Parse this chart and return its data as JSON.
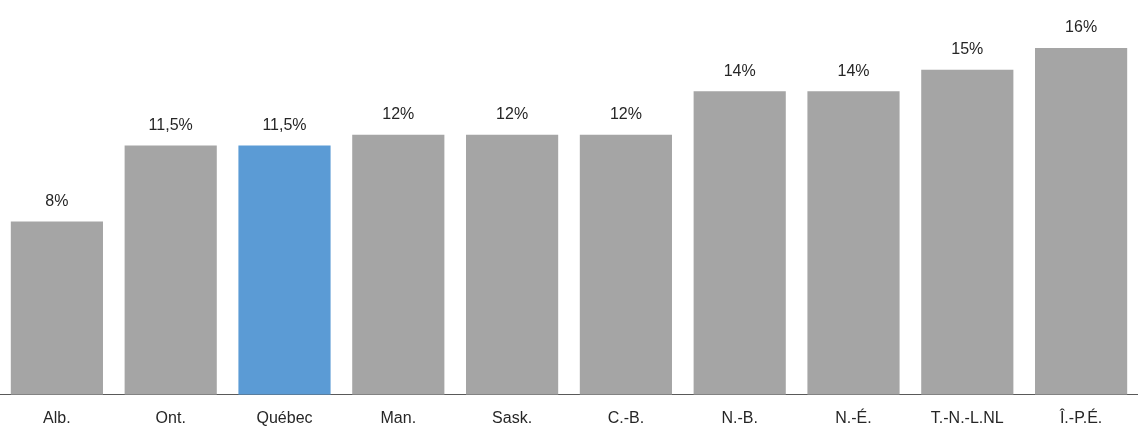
{
  "chart_data": {
    "type": "bar",
    "categories": [
      "Alb.",
      "Ont.",
      "Québec",
      "Man.",
      "Sask.",
      "C.-B.",
      "N.-B.",
      "N.-É.",
      "T.-N.-L.NL",
      "Î.-P.É."
    ],
    "values": [
      8,
      11.5,
      11.5,
      12,
      12,
      12,
      14,
      14,
      15,
      16
    ],
    "colors": [
      "#a5a5a5",
      "#a5a5a5",
      "#5b9bd5",
      "#a5a5a5",
      "#a5a5a5",
      "#a5a5a5",
      "#a5a5a5",
      "#a5a5a5",
      "#a5a5a5",
      "#a5a5a5"
    ],
    "value_labels": [
      "8%",
      "11,5%",
      "11,5%",
      "12%",
      "12%",
      "12%",
      "14%",
      "14%",
      "15%",
      "16%"
    ],
    "ylim": [
      0,
      16
    ],
    "tick_labels": "x",
    "grid": false,
    "legend": false
  }
}
